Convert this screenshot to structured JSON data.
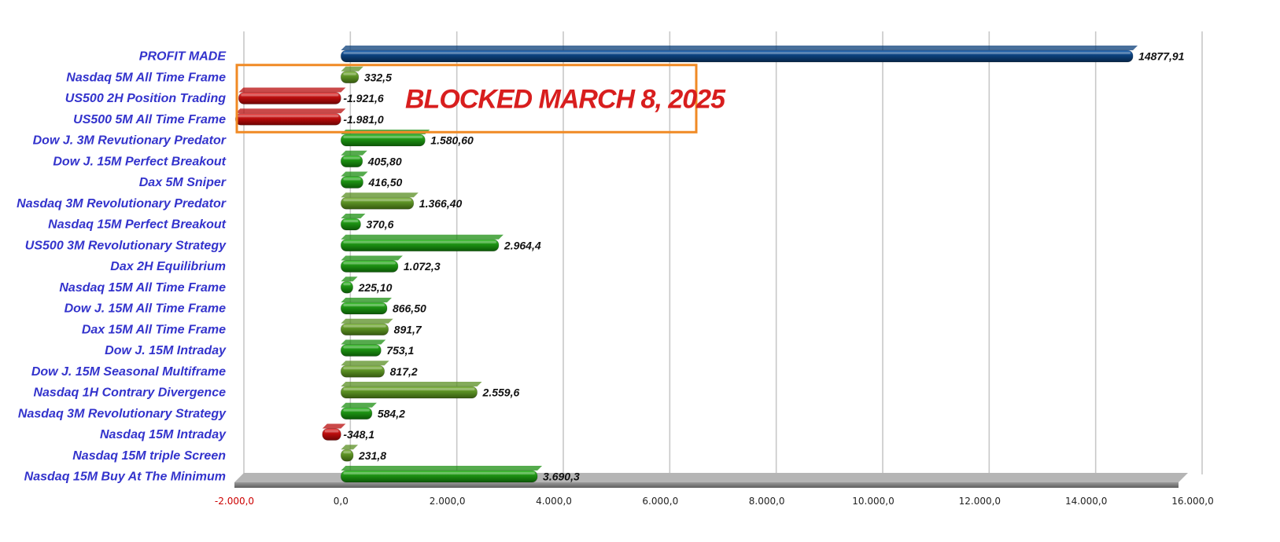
{
  "chart_data": {
    "type": "bar",
    "orientation": "horizontal",
    "categories": [
      "PROFIT      MADE",
      "Nasdaq 5M All Time Frame",
      "US500 2H Position Trading",
      "US500 5M All Time Frame",
      "Dow J. 3M Revutionary Predator",
      "Dow J. 15M Perfect Breakout",
      "Dax 5M Sniper",
      "Nasdaq 3M Revolutionary Predator",
      "Nasdaq 15M Perfect Breakout",
      "US500 3M Revolutionary Strategy",
      "Dax 2H Equilibrium",
      "Nasdaq 15M All Time Frame",
      "Dow J. 15M All Time Frame",
      "Dax 15M All Time Frame",
      "Dow J. 15M Intraday",
      "Dow J. 15M Seasonal Multiframe",
      "Nasdaq 1H Contrary Divergence",
      "Nasdaq 3M Revolutionary Strategy",
      "Nasdaq 15M Intraday",
      "Nasdaq 15M triple Screen",
      "Nasdaq 15M Buy At The Minimum"
    ],
    "values": [
      14877.91,
      332.5,
      -1921.6,
      -1981.0,
      1580.6,
      405.8,
      416.5,
      1366.4,
      370.6,
      2964.4,
      1072.3,
      225.1,
      866.5,
      891.7,
      753.1,
      817.2,
      2559.6,
      584.2,
      -348.1,
      231.8,
      3690.3
    ],
    "value_labels": [
      "14877,91",
      "332,5",
      "-1.921,6",
      "-1.981,0",
      "1.580,60",
      "405,80",
      "416,50",
      "1.366,40",
      "370,6",
      "2.964,4",
      "1.072,3",
      "225,10",
      "866,50",
      "891,7",
      "753,1",
      "817,2",
      "2.559,6",
      "584,2",
      "-348,1",
      "231,8",
      "3.690,3"
    ],
    "bar_colors": [
      "blue",
      "olive",
      "red",
      "red",
      "green",
      "green",
      "green",
      "olive",
      "green",
      "green",
      "green",
      "green",
      "green",
      "olive",
      "green",
      "olive",
      "olive",
      "green",
      "red",
      "olive",
      "green"
    ],
    "xlim": [
      -2000,
      16000
    ],
    "x_ticks": [
      -2000,
      0,
      2000,
      4000,
      6000,
      8000,
      10000,
      12000,
      14000,
      16000
    ],
    "x_tick_labels": [
      "-2.000,0",
      "0,0",
      "2.000,0",
      "4.000,0",
      "6.000,0",
      "8.000,0",
      "10.000,0",
      "12.000,0",
      "14.000,0",
      "16.000,0"
    ],
    "grid": true,
    "title": "",
    "xlabel": "",
    "ylabel": "",
    "annotation": {
      "text": "BLOCKED MARCH 8, 2025",
      "box_color": "#f08a24",
      "text_color": "#d81e1e",
      "covers_categories": [
        1,
        2,
        3
      ]
    },
    "colors": {
      "blue": "#0b3f7a",
      "green": "#1c8f12",
      "olive": "#5a8f23",
      "red": "#b80c0c",
      "label": "#3333cc",
      "negative_tick": "#cc0000"
    }
  }
}
